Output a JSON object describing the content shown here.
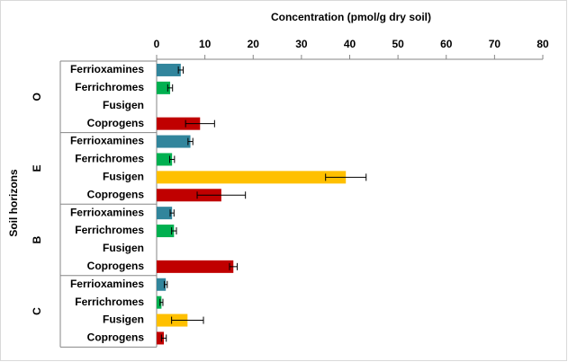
{
  "chart_data": {
    "type": "bar",
    "orientation": "horizontal",
    "x_label": "Concentration (pmol/g dry soil)",
    "y_label": "Soil horizons",
    "xlim": [
      0,
      80
    ],
    "xticks": [
      0,
      10,
      20,
      30,
      40,
      50,
      60,
      70,
      80
    ],
    "groups": [
      {
        "name": "O",
        "categories": [
          "Ferrioxamines",
          "Ferrichromes",
          "Fusigen",
          "Coprogens"
        ],
        "values": [
          5.0,
          2.8,
          0,
          9.0
        ],
        "errors": [
          0.5,
          0.5,
          0,
          3.0
        ],
        "colors": [
          "#31859c",
          "#00b050",
          "#ffc000",
          "#c00000"
        ]
      },
      {
        "name": "E",
        "categories": [
          "Ferrioxamines",
          "Ferrichromes",
          "Fusigen",
          "Coprogens"
        ],
        "values": [
          7.0,
          3.2,
          39.2,
          13.4
        ],
        "errors": [
          0.5,
          0.5,
          4.2,
          5.0
        ],
        "colors": [
          "#31859c",
          "#00b050",
          "#ffc000",
          "#c00000"
        ]
      },
      {
        "name": "B",
        "categories": [
          "Ferrioxamines",
          "Ferrichromes",
          "Fusigen",
          "Coprogens"
        ],
        "values": [
          3.2,
          3.6,
          0,
          15.9
        ],
        "errors": [
          0.4,
          0.5,
          0,
          0.8
        ],
        "colors": [
          "#31859c",
          "#00b050",
          "#ffc000",
          "#c00000"
        ]
      },
      {
        "name": "C",
        "categories": [
          "Ferrioxamines",
          "Ferrichromes",
          "Fusigen",
          "Coprogens"
        ],
        "values": [
          1.9,
          1.0,
          6.4,
          1.5
        ],
        "errors": [
          0.3,
          0.3,
          3.3,
          0.5
        ],
        "colors": [
          "#31859c",
          "#00b050",
          "#ffc000",
          "#c00000"
        ]
      }
    ]
  }
}
